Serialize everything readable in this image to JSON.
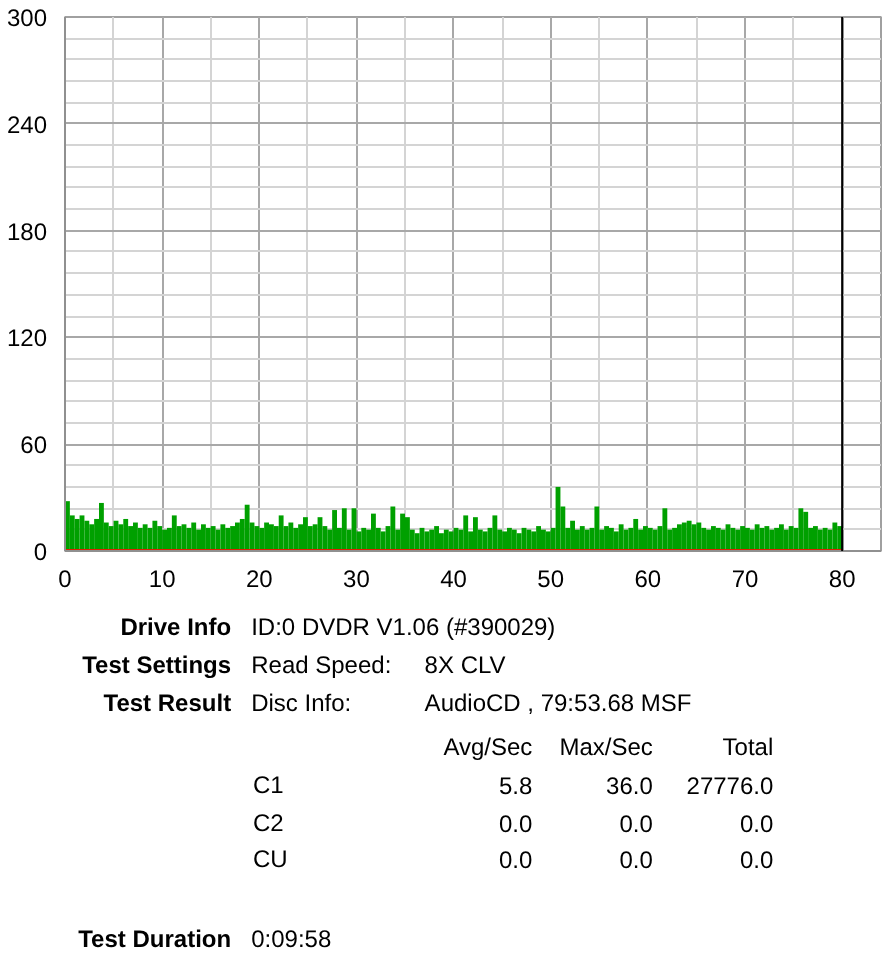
{
  "chart_data": {
    "type": "bar",
    "x": [
      0.25,
      0.75,
      1.25,
      1.75,
      2.25,
      2.75,
      3.25,
      3.75,
      4.25,
      4.75,
      5.25,
      5.75,
      6.25,
      6.75,
      7.25,
      7.75,
      8.25,
      8.75,
      9.25,
      9.75,
      10.25,
      10.75,
      11.25,
      11.75,
      12.25,
      12.75,
      13.25,
      13.75,
      14.25,
      14.75,
      15.25,
      15.75,
      16.25,
      16.75,
      17.25,
      17.75,
      18.25,
      18.75,
      19.25,
      19.75,
      20.25,
      20.75,
      21.25,
      21.75,
      22.25,
      22.75,
      23.25,
      23.75,
      24.25,
      24.75,
      25.25,
      25.75,
      26.25,
      26.75,
      27.25,
      27.75,
      28.25,
      28.75,
      29.25,
      29.75,
      30.25,
      30.75,
      31.25,
      31.75,
      32.25,
      32.75,
      33.25,
      33.75,
      34.25,
      34.75,
      35.25,
      35.75,
      36.25,
      36.75,
      37.25,
      37.75,
      38.25,
      38.75,
      39.25,
      39.75,
      40.25,
      40.75,
      41.25,
      41.75,
      42.25,
      42.75,
      43.25,
      43.75,
      44.25,
      44.75,
      45.25,
      45.75,
      46.25,
      46.75,
      47.25,
      47.75,
      48.25,
      48.75,
      49.25,
      49.75,
      50.25,
      50.75,
      51.25,
      51.75,
      52.25,
      52.75,
      53.25,
      53.75,
      54.25,
      54.75,
      55.25,
      55.75,
      56.25,
      56.75,
      57.25,
      57.75,
      58.25,
      58.75,
      59.25,
      59.75,
      60.25,
      60.75,
      61.25,
      61.75,
      62.25,
      62.75,
      63.25,
      63.75,
      64.25,
      64.75,
      65.25,
      65.75,
      66.25,
      66.75,
      67.25,
      67.75,
      68.25,
      68.75,
      69.25,
      69.75,
      70.25,
      70.75,
      71.25,
      71.75,
      72.25,
      72.75,
      73.25,
      73.75,
      74.25,
      74.75,
      75.25,
      75.75,
      76.25,
      76.75,
      77.25,
      77.75,
      78.25,
      78.75,
      79.25,
      79.75
    ],
    "series": [
      {
        "color": "#00a000",
        "values": [
          28,
          20,
          18,
          20,
          17,
          15,
          18,
          27,
          16,
          14,
          17,
          15,
          18,
          14,
          16,
          13,
          15,
          13,
          17,
          14,
          12,
          13,
          20,
          14,
          15,
          13,
          16,
          12,
          15,
          13,
          14,
          12,
          15,
          13,
          14,
          16,
          18,
          26,
          16,
          14,
          13,
          16,
          15,
          14,
          20,
          14,
          16,
          13,
          15,
          19,
          14,
          15,
          19,
          14,
          12,
          23,
          13,
          24,
          12,
          24,
          11,
          13,
          12,
          21,
          13,
          11,
          14,
          25,
          12,
          21,
          19,
          12,
          10,
          13,
          11,
          12,
          14,
          10,
          12,
          11,
          13,
          12,
          20,
          11,
          19,
          12,
          11,
          13,
          20,
          12,
          11,
          13,
          12,
          10,
          13,
          12,
          11,
          14,
          12,
          11,
          13,
          36,
          25,
          13,
          17,
          12,
          14,
          12,
          13,
          25,
          12,
          14,
          13,
          11,
          15,
          12,
          13,
          18,
          12,
          14,
          13,
          12,
          14,
          24,
          12,
          13,
          15,
          16,
          17,
          15,
          16,
          13,
          12,
          14,
          13,
          12,
          15,
          13,
          12,
          14,
          13,
          12,
          15,
          13,
          14,
          12,
          13,
          15,
          12,
          14,
          13,
          24,
          22,
          13,
          14,
          12,
          13,
          12,
          16,
          14
        ]
      },
      {
        "type": "line",
        "color": "#e02000",
        "x": [
          0,
          80
        ],
        "values": [
          0,
          0
        ]
      }
    ],
    "xlim": [
      0,
      84
    ],
    "ylim": [
      0,
      300
    ],
    "xticks": [
      0,
      {
        "value": 5,
        "label": null
      },
      10,
      {
        "value": 15,
        "label": null
      },
      20,
      {
        "value": 25,
        "label": null
      },
      30,
      {
        "value": 35,
        "label": null
      },
      40,
      {
        "value": 45,
        "label": null
      },
      50,
      {
        "value": 55,
        "label": null
      },
      60,
      {
        "value": 65,
        "label": null
      },
      70,
      {
        "value": 75,
        "label": null
      },
      80
    ],
    "yticks": [
      0,
      {
        "value": 12,
        "label": null
      },
      {
        "value": 24,
        "label": null
      },
      {
        "value": 36,
        "label": null
      },
      {
        "value": 48,
        "label": null
      },
      60,
      {
        "value": 72,
        "label": null
      },
      {
        "value": 84,
        "label": null
      },
      {
        "value": 96,
        "label": null
      },
      {
        "value": 108,
        "label": null
      },
      120,
      {
        "value": 132,
        "label": null
      },
      {
        "value": 144,
        "label": null
      },
      {
        "value": 156,
        "label": null
      },
      {
        "value": 168,
        "label": null
      },
      180,
      {
        "value": 192,
        "label": null
      },
      {
        "value": 204,
        "label": null
      },
      {
        "value": 216,
        "label": null
      },
      {
        "value": 228,
        "label": null
      },
      240,
      {
        "value": 252,
        "label": null
      },
      {
        "value": 264,
        "label": null
      },
      {
        "value": 276,
        "label": null
      },
      {
        "value": 288,
        "label": null
      },
      300
    ],
    "grid": true,
    "ref_lines": [
      {
        "axis": "x",
        "value": 80,
        "color": "#000000"
      }
    ],
    "annotations": [
      "Drive Info",
      "ID:0 DVDR V1.06 (#390029)",
      "Test Settings",
      "Read Speed:",
      "8X CLV",
      "Test Result",
      "Disc Info:",
      "AudioCD , 79:53.68 MSF",
      "Avg/Sec",
      "Max/Sec",
      "Total",
      "C1",
      "5.8",
      "36.0",
      "27776.0",
      "C2",
      "0.0",
      "0.0",
      "0.0",
      "CU",
      "0.0",
      "0.0",
      "0.0",
      "Test Duration",
      "0:09:58"
    ]
  }
}
